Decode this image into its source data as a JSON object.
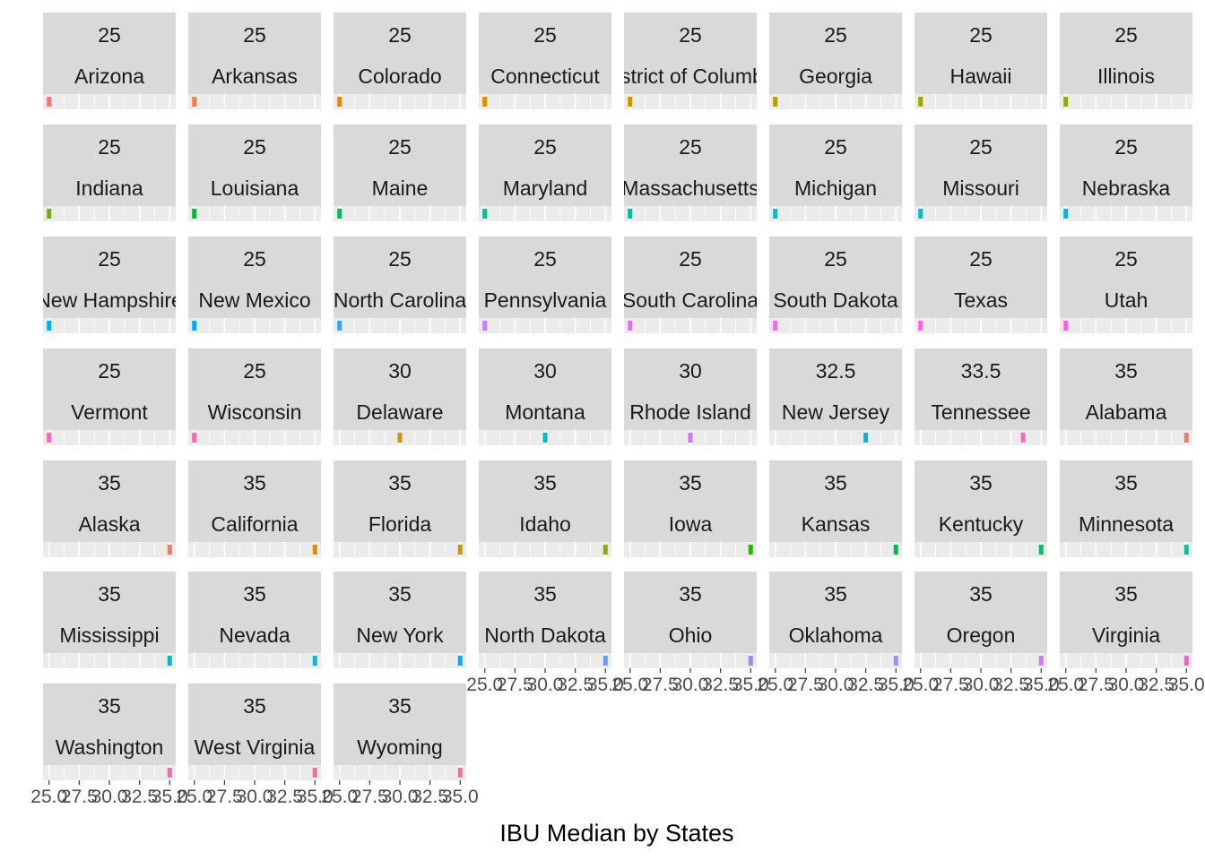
{
  "chart_data": {
    "type": "bar",
    "xlabel": "IBU Median by States",
    "xlim": [
      24.5,
      35.5
    ],
    "x_ticks": [
      25.0,
      27.5,
      30.0,
      32.5,
      35.0
    ],
    "x_tick_labels": [
      "25.0",
      "27.5",
      "30.0",
      "32.5",
      "35.0"
    ],
    "grid": true,
    "legend": "none",
    "facets": [
      {
        "state": "Arizona",
        "value_label": "25",
        "value": 25,
        "color": "#F8766D"
      },
      {
        "state": "Arkansas",
        "value_label": "25",
        "value": 25,
        "color": "#F27D52"
      },
      {
        "state": "Colorado",
        "value_label": "25",
        "value": 25,
        "color": "#E68613"
      },
      {
        "state": "Connecticut",
        "value_label": "25",
        "value": 25,
        "color": "#D89000"
      },
      {
        "state": "District of Columbia",
        "value_label": "25",
        "value": 25,
        "color": "#C79800"
      },
      {
        "state": "Georgia",
        "value_label": "25",
        "value": 25,
        "color": "#B79F00"
      },
      {
        "state": "Hawaii",
        "value_label": "25",
        "value": 25,
        "color": "#A3A500"
      },
      {
        "state": "Illinois",
        "value_label": "25",
        "value": 25,
        "color": "#8EAB00"
      },
      {
        "state": "Indiana",
        "value_label": "25",
        "value": 25,
        "color": "#6BB100"
      },
      {
        "state": "Louisiana",
        "value_label": "25",
        "value": 25,
        "color": "#00BA38"
      },
      {
        "state": "Maine",
        "value_label": "25",
        "value": 25,
        "color": "#00BD5C"
      },
      {
        "state": "Maryland",
        "value_label": "25",
        "value": 25,
        "color": "#00C08B"
      },
      {
        "state": "Massachusetts",
        "value_label": "25",
        "value": 25,
        "color": "#00C0A3"
      },
      {
        "state": "Michigan",
        "value_label": "25",
        "value": 25,
        "color": "#00BFC4"
      },
      {
        "state": "Missouri",
        "value_label": "25",
        "value": 25,
        "color": "#00BCD8"
      },
      {
        "state": "Nebraska",
        "value_label": "25",
        "value": 25,
        "color": "#00B4EF"
      },
      {
        "state": "New Hampshire",
        "value_label": "25",
        "value": 25,
        "color": "#00B0F6"
      },
      {
        "state": "New Mexico",
        "value_label": "25",
        "value": 25,
        "color": "#00A9FF"
      },
      {
        "state": "North Carolina",
        "value_label": "25",
        "value": 25,
        "color": "#35A2FF"
      },
      {
        "state": "Pennsylvania",
        "value_label": "25",
        "value": 25,
        "color": "#C77CFF"
      },
      {
        "state": "South Carolina",
        "value_label": "25",
        "value": 25,
        "color": "#DC71FA"
      },
      {
        "state": "South Dakota",
        "value_label": "25",
        "value": 25,
        "color": "#E76BF3"
      },
      {
        "state": "Texas",
        "value_label": "25",
        "value": 25,
        "color": "#F564E3"
      },
      {
        "state": "Utah",
        "value_label": "25",
        "value": 25,
        "color": "#FB61D7"
      },
      {
        "state": "Vermont",
        "value_label": "25",
        "value": 25,
        "color": "#FF61C3"
      },
      {
        "state": "Wisconsin",
        "value_label": "25",
        "value": 25,
        "color": "#FF67A4"
      },
      {
        "state": "Delaware",
        "value_label": "30",
        "value": 30,
        "color": "#C49A00"
      },
      {
        "state": "Montana",
        "value_label": "30",
        "value": 30,
        "color": "#00BFC4"
      },
      {
        "state": "Rhode Island",
        "value_label": "30",
        "value": 30,
        "color": "#D575FE"
      },
      {
        "state": "New Jersey",
        "value_label": "32.5",
        "value": 32.5,
        "color": "#00B2E8"
      },
      {
        "state": "Tennessee",
        "value_label": "33.5",
        "value": 33.5,
        "color": "#FF62BC"
      },
      {
        "state": "Alabama",
        "value_label": "35",
        "value": 35,
        "color": "#F8766D"
      },
      {
        "state": "Alaska",
        "value_label": "35",
        "value": 35,
        "color": "#F47A5A"
      },
      {
        "state": "California",
        "value_label": "35",
        "value": 35,
        "color": "#E18A00"
      },
      {
        "state": "Florida",
        "value_label": "35",
        "value": 35,
        "color": "#BE9C00"
      },
      {
        "state": "Idaho",
        "value_label": "35",
        "value": 35,
        "color": "#99A800"
      },
      {
        "state": "Iowa",
        "value_label": "35",
        "value": 35,
        "color": "#24B700"
      },
      {
        "state": "Kansas",
        "value_label": "35",
        "value": 35,
        "color": "#00BB4E"
      },
      {
        "state": "Kentucky",
        "value_label": "35",
        "value": 35,
        "color": "#00BE6C"
      },
      {
        "state": "Minnesota",
        "value_label": "35",
        "value": 35,
        "color": "#00C1A9"
      },
      {
        "state": "Mississippi",
        "value_label": "35",
        "value": 35,
        "color": "#00BFB8"
      },
      {
        "state": "Nevada",
        "value_label": "35",
        "value": 35,
        "color": "#00BBDA"
      },
      {
        "state": "New York",
        "value_label": "35",
        "value": 35,
        "color": "#00ACFC"
      },
      {
        "state": "North Dakota",
        "value_label": "35",
        "value": 35,
        "color": "#619CFF"
      },
      {
        "state": "Ohio",
        "value_label": "35",
        "value": 35,
        "color": "#8B93FF"
      },
      {
        "state": "Oklahoma",
        "value_label": "35",
        "value": 35,
        "color": "#A58AFF"
      },
      {
        "state": "Oregon",
        "value_label": "35",
        "value": 35,
        "color": "#C77CFF"
      },
      {
        "state": "Virginia",
        "value_label": "35",
        "value": 35,
        "color": "#FF61C3"
      },
      {
        "state": "Washington",
        "value_label": "35",
        "value": 35,
        "color": "#FF64B0"
      },
      {
        "state": "West Virginia",
        "value_label": "35",
        "value": 35,
        "color": "#FF689C"
      },
      {
        "state": "Wyoming",
        "value_label": "35",
        "value": 35,
        "color": "#FF6C91"
      }
    ]
  }
}
